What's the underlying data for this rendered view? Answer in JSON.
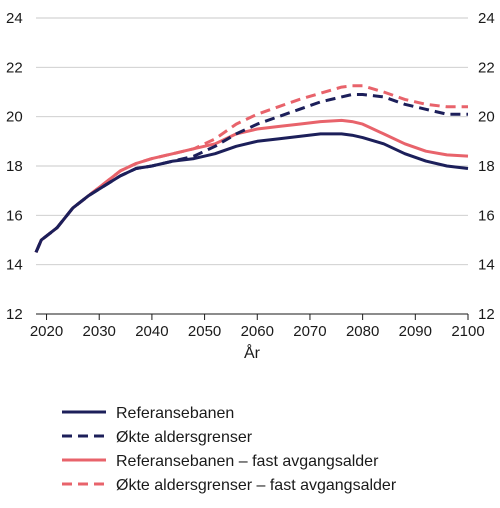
{
  "chart_data": {
    "type": "line",
    "xlabel": "År",
    "ylabel": "",
    "xlim": [
      2018,
      2100
    ],
    "ylim": [
      12,
      24
    ],
    "xticks": [
      2020,
      2030,
      2040,
      2050,
      2060,
      2070,
      2080,
      2090,
      2100
    ],
    "yticks": [
      12,
      14,
      16,
      18,
      20,
      22,
      24
    ],
    "grid": true,
    "legend_position": "bottom",
    "series": [
      {
        "name": "Referansebanen",
        "color": "#1c1f5a",
        "style": "solid",
        "x": [
          2018,
          2019,
          2022,
          2025,
          2028,
          2031,
          2034,
          2037,
          2040,
          2044,
          2048,
          2052,
          2056,
          2060,
          2064,
          2068,
          2072,
          2076,
          2078,
          2080,
          2084,
          2088,
          2092,
          2096,
          2100
        ],
        "y": [
          14.5,
          15.0,
          15.5,
          16.3,
          16.8,
          17.2,
          17.6,
          17.9,
          18.0,
          18.2,
          18.3,
          18.5,
          18.8,
          19.0,
          19.1,
          19.2,
          19.3,
          19.3,
          19.25,
          19.15,
          18.9,
          18.5,
          18.2,
          18.0,
          17.9
        ]
      },
      {
        "name": "Økte aldersgrenser",
        "color": "#1c1f5a",
        "style": "dashed",
        "x": [
          2018,
          2019,
          2022,
          2025,
          2028,
          2031,
          2034,
          2037,
          2040,
          2044,
          2048,
          2052,
          2056,
          2060,
          2064,
          2068,
          2072,
          2076,
          2078,
          2080,
          2084,
          2088,
          2092,
          2096,
          2100
        ],
        "y": [
          14.5,
          15.0,
          15.5,
          16.3,
          16.8,
          17.2,
          17.6,
          17.9,
          18.0,
          18.2,
          18.4,
          18.8,
          19.3,
          19.7,
          20.0,
          20.3,
          20.6,
          20.8,
          20.9,
          20.9,
          20.8,
          20.5,
          20.3,
          20.1,
          20.1
        ]
      },
      {
        "name": "Referansebanen – fast avgangsalder",
        "color": "#e8636b",
        "style": "solid",
        "x": [
          2018,
          2019,
          2022,
          2025,
          2028,
          2031,
          2034,
          2037,
          2040,
          2044,
          2048,
          2052,
          2056,
          2060,
          2064,
          2068,
          2072,
          2076,
          2078,
          2080,
          2084,
          2088,
          2092,
          2096,
          2100
        ],
        "y": [
          14.5,
          15.0,
          15.5,
          16.3,
          16.8,
          17.3,
          17.8,
          18.1,
          18.3,
          18.5,
          18.7,
          18.9,
          19.3,
          19.5,
          19.6,
          19.7,
          19.8,
          19.85,
          19.8,
          19.7,
          19.3,
          18.9,
          18.6,
          18.45,
          18.4
        ]
      },
      {
        "name": "Økte aldersgrenser – fast avgangsalder",
        "color": "#e8636b",
        "style": "dashed",
        "x": [
          2018,
          2019,
          2022,
          2025,
          2028,
          2031,
          2034,
          2037,
          2040,
          2044,
          2048,
          2052,
          2056,
          2060,
          2064,
          2068,
          2072,
          2076,
          2078,
          2080,
          2084,
          2088,
          2092,
          2096,
          2100
        ],
        "y": [
          14.5,
          15.0,
          15.5,
          16.3,
          16.8,
          17.3,
          17.8,
          18.1,
          18.3,
          18.5,
          18.7,
          19.1,
          19.7,
          20.1,
          20.4,
          20.7,
          20.95,
          21.2,
          21.25,
          21.25,
          21.0,
          20.7,
          20.5,
          20.4,
          20.4
        ]
      }
    ]
  }
}
